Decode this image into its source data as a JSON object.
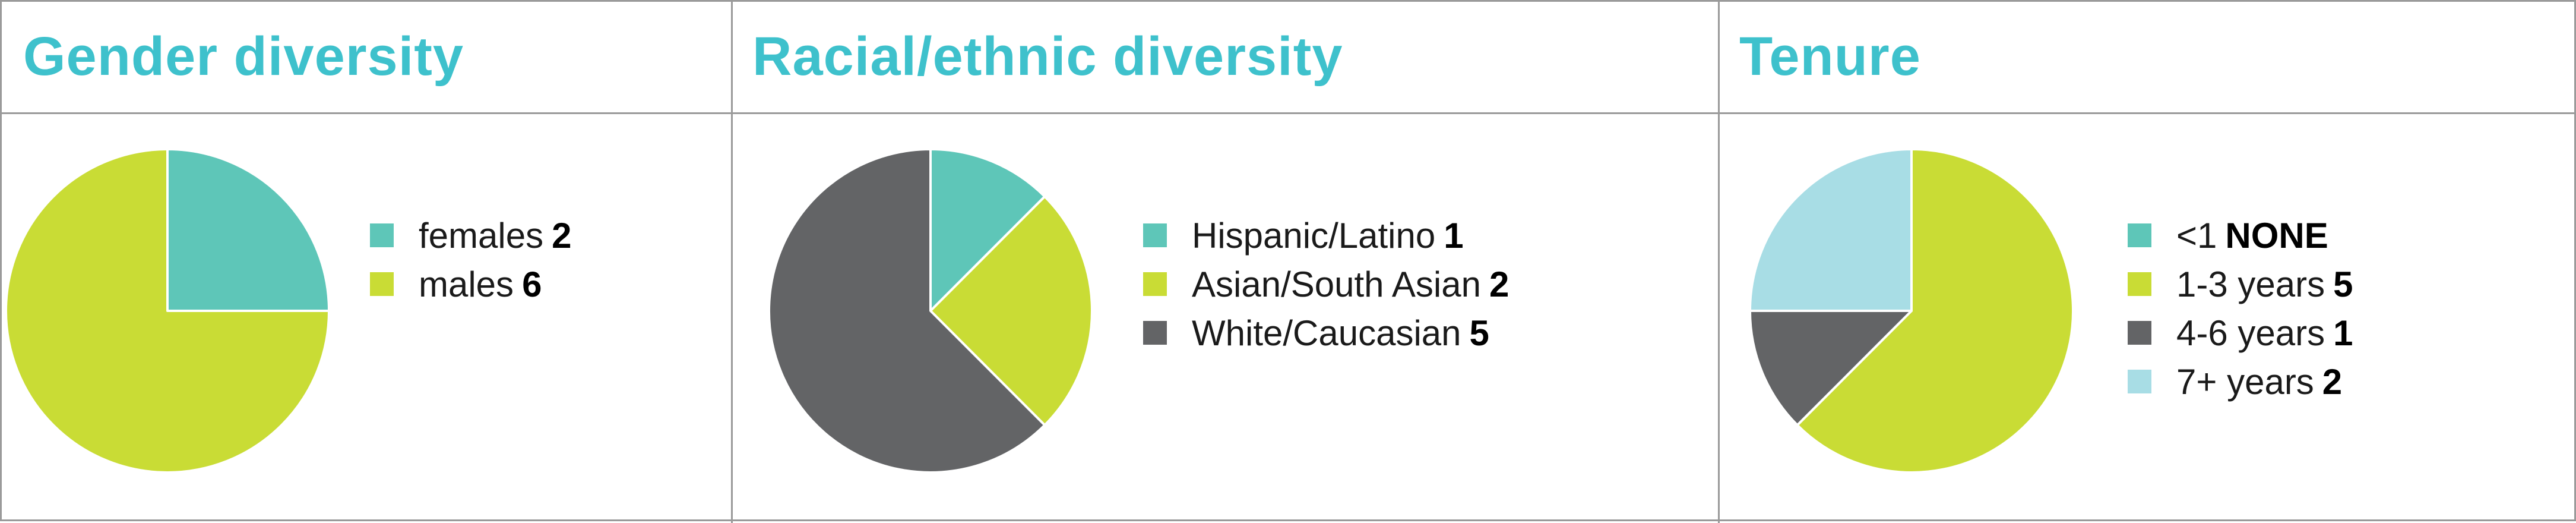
{
  "colors": {
    "title": "#3ec1cc",
    "teal": "#5ec6b8",
    "lime": "#c9dc35",
    "gray": "#636466",
    "light_blue": "#a8dde5",
    "border": "#9a9a9a"
  },
  "panels": [
    {
      "title": "Gender diversity"
    },
    {
      "title": "Racial/ethnic diversity"
    },
    {
      "title": "Tenure"
    }
  ],
  "chart_data": [
    {
      "type": "pie",
      "title": "Gender diversity",
      "labels": [
        "females",
        "males"
      ],
      "values": [
        2,
        6
      ],
      "value_labels": [
        "2",
        "6"
      ],
      "colors": [
        "#5ec6b8",
        "#c9dc35"
      ],
      "legend_position": "right"
    },
    {
      "type": "pie",
      "title": "Racial/ethnic diversity",
      "labels": [
        "Hispanic/Latino",
        "Asian/South Asian",
        "White/Caucasian"
      ],
      "values": [
        1,
        2,
        5
      ],
      "value_labels": [
        "1",
        "2",
        "5"
      ],
      "colors": [
        "#5ec6b8",
        "#c9dc35",
        "#636466"
      ],
      "legend_position": "right"
    },
    {
      "type": "pie",
      "title": "Tenure",
      "labels": [
        "<1",
        "1-3 years",
        "4-6 years",
        "7+ years"
      ],
      "values": [
        0,
        5,
        1,
        2
      ],
      "value_labels": [
        "NONE",
        "5",
        "1",
        "2"
      ],
      "colors": [
        "#5ec6b8",
        "#c9dc35",
        "#636466",
        "#a8dde5"
      ],
      "legend_position": "right"
    }
  ]
}
